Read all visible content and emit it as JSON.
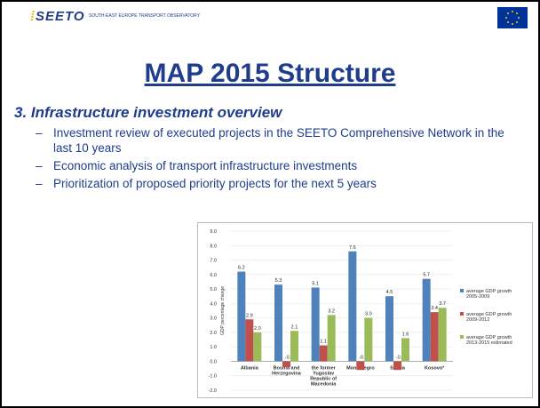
{
  "header": {
    "logo": "SEETO",
    "tagline": "SOUTH-EAST EUROPE TRANSPORT OBSERVATORY"
  },
  "title": "MAP 2015 Structure",
  "subtitle": "3. Infrastructure investment overview",
  "bullets": [
    "Investment review of executed projects in the SEETO Comprehensive Network in the last 10 years",
    "Economic analysis of transport infrastructure investments",
    "Prioritization of proposed priority projects for the next 5 years"
  ],
  "chart_data": {
    "type": "bar",
    "y_label": "GDP percentage change",
    "categories": [
      "Albania",
      "Bosnia and Herzegovina",
      "the former Yugoslav Republic of Macedonia",
      "Montenegro",
      "Serbia",
      "Kosovo*"
    ],
    "series": [
      {
        "name": "average GDP growth 2005-2009",
        "color": "#4f81bd",
        "values": [
          6.2,
          5.3,
          5.1,
          7.6,
          4.5,
          5.7
        ],
        "value_labels": [
          "6.2",
          "5.3",
          "5.1",
          "7.6",
          "4.5",
          "5.7"
        ]
      },
      {
        "name": "average GDP growth 2009-2012",
        "color": "#c0504d",
        "values": [
          2.9,
          -0.4,
          1.1,
          -0.6,
          -0.6,
          3.4
        ],
        "value_labels": [
          "2.9",
          "-0.4",
          "1.1",
          "-0.6",
          "-0.6",
          "3.4"
        ]
      },
      {
        "name": "average GDP growth 2013-2015 estimated",
        "color": "#9bbb59",
        "values": [
          2.0,
          2.1,
          3.2,
          3.0,
          1.6,
          3.7
        ],
        "value_labels": [
          "2.0",
          "2.1",
          "3.2",
          "3.0",
          "1.6",
          "3.7"
        ]
      }
    ],
    "ylim": [
      -2,
      9
    ],
    "yticks": [
      {
        "value": -2,
        "label": "-2.0"
      },
      {
        "value": -1,
        "label": "-1.0"
      },
      {
        "value": 0,
        "label": "0.0"
      },
      {
        "value": 1,
        "label": "1.0"
      },
      {
        "value": 2,
        "label": "2.0"
      },
      {
        "value": 3,
        "label": "3.0"
      },
      {
        "value": 4,
        "label": "4.0"
      },
      {
        "value": 5,
        "label": "5.0"
      },
      {
        "value": 6,
        "label": "6.0"
      },
      {
        "value": 7,
        "label": "7.0"
      },
      {
        "value": 8,
        "label": "8.0"
      },
      {
        "value": 9,
        "label": "9.0"
      }
    ],
    "grid": true,
    "legend": "right"
  }
}
